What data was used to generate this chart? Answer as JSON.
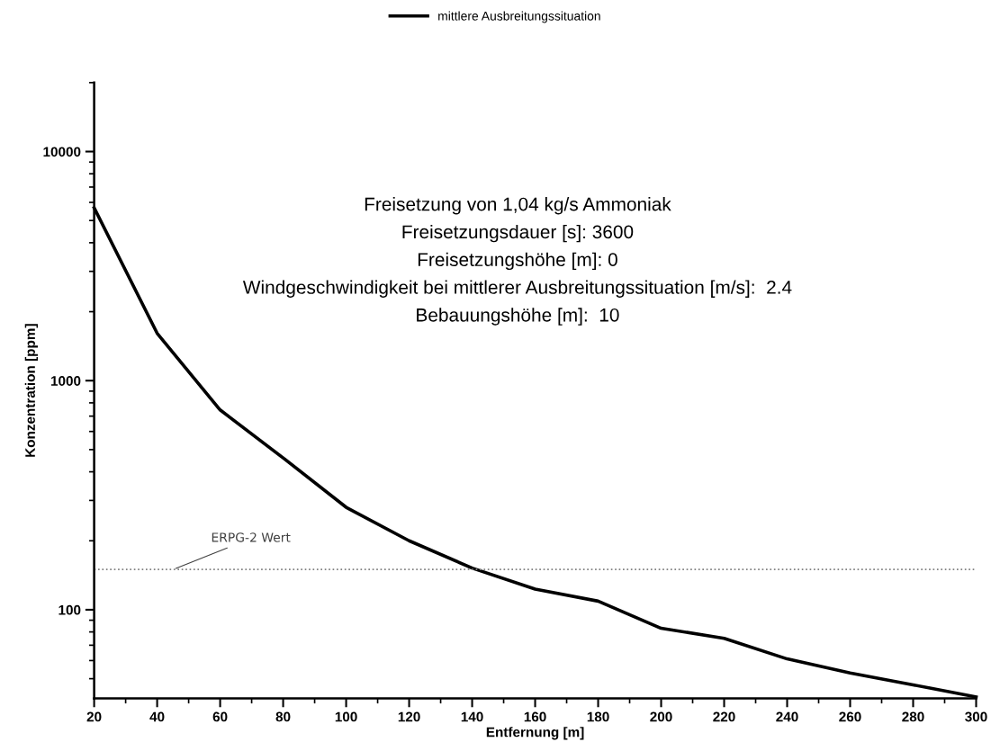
{
  "chart_data": {
    "type": "line",
    "xlabel": "Entfernung [m]",
    "ylabel": "Konzentration [ppm]",
    "x": [
      20,
      40,
      60,
      80,
      100,
      120,
      140,
      160,
      180,
      200,
      220,
      240,
      260,
      280,
      300
    ],
    "series": [
      {
        "name": "mittlere Ausbreitungssituation",
        "color": "#000000",
        "values": [
          5680,
          1610,
          745,
          460,
          280,
          200,
          152,
          123,
          109,
          83,
          75,
          61,
          53,
          47,
          41.6
        ]
      }
    ],
    "xlim": [
      20,
      300
    ],
    "xticks": [
      20,
      40,
      60,
      80,
      100,
      120,
      140,
      160,
      180,
      200,
      220,
      240,
      260,
      280,
      300
    ],
    "ylim": [
      41,
      20000
    ],
    "yticks": [
      100,
      1000,
      10000
    ],
    "log": "y",
    "grid": false,
    "legend": "top",
    "marker": "none",
    "line_style": "solid",
    "ref_lines": [
      {
        "axis": "y",
        "value": 150,
        "label": "ERPG-2 Wert",
        "color": "#808080",
        "line_style": "dotted"
      }
    ],
    "annotations": [
      "Freisetzung von 1,04 kg/s Ammoniak",
      "Freisetzungsdauer [s]: 3600",
      "Freisetzungshöhe [m]: 0",
      "Windgeschwindigkeit bei mittlerer Ausbreitungssituation [m/s]:  2.4",
      "Bebauungshöhe [m]:  10"
    ]
  }
}
